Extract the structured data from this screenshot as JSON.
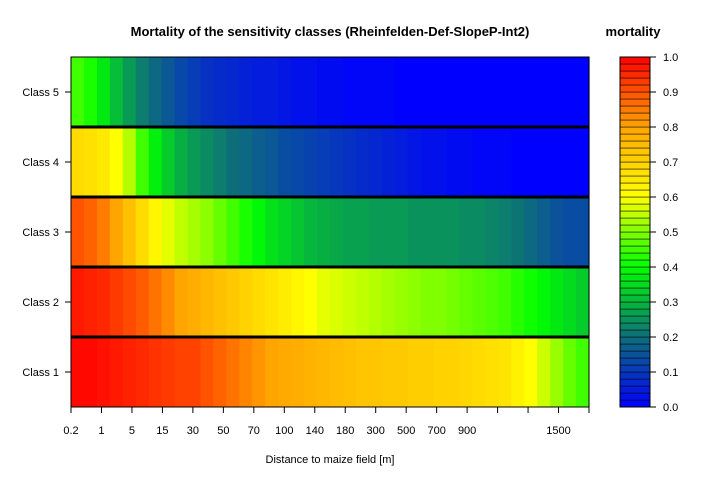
{
  "chart_data": {
    "type": "heatmap",
    "title": "Mortality of the sensitivity classes (Rheinfelden-Def-SlopeP-Int2)",
    "xlabel": "Distance to maize field [m]",
    "ylabel": "",
    "categories": [
      "Class 1",
      "Class 2",
      "Class 3",
      "Class 4",
      "Class 5"
    ],
    "x_ticks": [
      "0.2",
      "1",
      "5",
      "15",
      "30",
      "50",
      "70",
      "100",
      "140",
      "180",
      "300",
      "500",
      "700",
      "900",
      "1500"
    ],
    "x_tick_marks": [
      "0.2",
      "1",
      "5",
      "15",
      "30",
      "50",
      "70",
      "100",
      "140",
      "180",
      "300",
      "500",
      "700",
      "900",
      "1100",
      "1300",
      "1500",
      "1700"
    ],
    "rows": [
      {
        "name": "Class 1",
        "values": [
          0.99,
          0.99,
          0.98,
          0.97,
          0.96,
          0.95,
          0.94,
          0.93,
          0.92,
          0.92,
          0.9,
          0.88,
          0.86,
          0.84,
          0.82,
          0.8,
          0.79,
          0.78,
          0.77,
          0.76,
          0.75,
          0.74,
          0.73,
          0.73,
          0.72,
          0.72,
          0.71,
          0.71,
          0.7,
          0.7,
          0.69,
          0.68,
          0.67,
          0.66,
          0.63,
          0.6,
          0.56,
          0.52,
          0.48,
          0.45
        ]
      },
      {
        "name": "Class 2",
        "values": [
          0.97,
          0.96,
          0.95,
          0.93,
          0.91,
          0.89,
          0.86,
          0.83,
          0.8,
          0.78,
          0.76,
          0.74,
          0.72,
          0.7,
          0.68,
          0.66,
          0.64,
          0.62,
          0.6,
          0.58,
          0.57,
          0.56,
          0.55,
          0.54,
          0.53,
          0.52,
          0.51,
          0.5,
          0.5,
          0.49,
          0.48,
          0.47,
          0.46,
          0.45,
          0.43,
          0.41,
          0.39,
          0.37,
          0.35,
          0.33
        ]
      },
      {
        "name": "Class 3",
        "values": [
          0.9,
          0.88,
          0.85,
          0.8,
          0.74,
          0.68,
          0.62,
          0.58,
          0.55,
          0.53,
          0.51,
          0.48,
          0.45,
          0.42,
          0.39,
          0.36,
          0.34,
          0.32,
          0.3,
          0.29,
          0.28,
          0.27,
          0.27,
          0.26,
          0.26,
          0.26,
          0.25,
          0.25,
          0.25,
          0.25,
          0.24,
          0.24,
          0.23,
          0.22,
          0.21,
          0.19,
          0.17,
          0.15,
          0.14,
          0.14
        ]
      },
      {
        "name": "Class 4",
        "values": [
          0.68,
          0.67,
          0.65,
          0.6,
          0.54,
          0.45,
          0.38,
          0.33,
          0.29,
          0.26,
          0.24,
          0.22,
          0.2,
          0.19,
          0.17,
          0.16,
          0.14,
          0.13,
          0.12,
          0.11,
          0.1,
          0.09,
          0.08,
          0.07,
          0.06,
          0.05,
          0.04,
          0.03,
          0.03,
          0.02,
          0.02,
          0.01,
          0.01,
          0.01,
          0.0,
          0.0,
          0.0,
          0.0,
          0.0,
          0.0
        ]
      },
      {
        "name": "Class 5",
        "values": [
          0.45,
          0.42,
          0.37,
          0.31,
          0.26,
          0.22,
          0.19,
          0.16,
          0.13,
          0.11,
          0.09,
          0.08,
          0.07,
          0.06,
          0.05,
          0.05,
          0.04,
          0.03,
          0.03,
          0.02,
          0.02,
          0.01,
          0.01,
          0.01,
          0.01,
          0.0,
          0.0,
          0.0,
          0.0,
          0.0,
          0.0,
          0.0,
          0.0,
          0.0,
          0.0,
          0.0,
          0.0,
          0.0,
          0.0,
          0.0
        ]
      }
    ],
    "colorbar": {
      "title": "mortality",
      "range": [
        0.0,
        1.0
      ],
      "ticks": [
        "0.0",
        "0.1",
        "0.2",
        "0.3",
        "0.4",
        "0.5",
        "0.6",
        "0.7",
        "0.8",
        "0.9",
        "1.0"
      ],
      "colorscale": [
        "#0000ff",
        "#0d6e7a",
        "#00ff00",
        "#ffff00",
        "#ffa500",
        "#ff0000"
      ]
    },
    "grid": false,
    "legend_position": "right"
  }
}
